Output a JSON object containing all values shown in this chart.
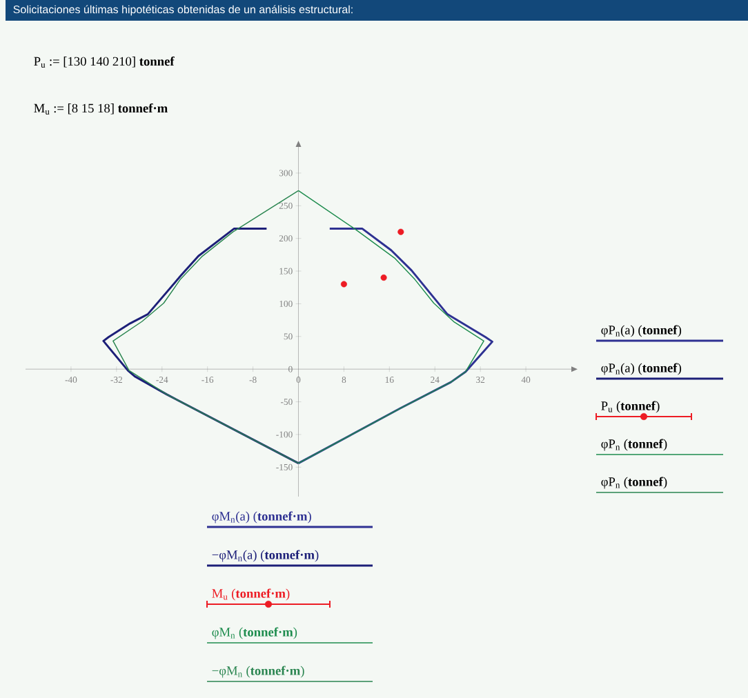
{
  "chart_data": {
    "type": "line",
    "title": "Solicitaciones últimas hipotéticas obtenidas de un análisis estructural:",
    "annotations": [
      "P$_{u}$ := [130  140  210] **tonnef**",
      "M$_{u}$ := [8  15  18] **tonnef·m**",
      "φP$_{n}$(a)  (**tonnef**)",
      "φP$_{n}$(a)  (**tonnef**)",
      "P$_{u}$  (**tonnef**)",
      "φP$_{n}$  (**tonnef**)",
      "φP$_{n}$  (**tonnef**)"
    ],
    "xlim": [
      -48,
      48
    ],
    "ylim": [
      -195,
      340
    ],
    "xticks": [
      -40,
      -32,
      -24,
      -16,
      -8,
      0,
      8,
      16,
      24,
      32,
      40
    ],
    "yticks": [
      -150,
      -100,
      -50,
      0,
      50,
      100,
      150,
      200,
      250,
      300
    ],
    "series": [
      {
        "name": "φM$_{n}$(a)  (**tonnef·m**)",
        "color": "#2e3192",
        "x": [
          5.5,
          11.2,
          16.3,
          19.9,
          26.2,
          32.9,
          34.1,
          29.4,
          26.8,
          17.9,
          0
        ],
        "values": [
          215,
          215,
          182,
          151,
          84,
          49,
          42,
          -4,
          -20,
          -60,
          -144
        ]
      },
      {
        "name": "−φM$_{n}$(a)  (**tonnef·m**)",
        "color": "#1c1f78",
        "x": [
          -5.6,
          -11.3,
          -17.6,
          -20.6,
          -26.5,
          -29.6,
          -33.4,
          -34.3,
          -30,
          -28.8,
          -23.1,
          0
        ],
        "values": [
          215,
          215,
          173,
          144,
          84,
          70,
          49,
          43,
          -2,
          -11,
          -39,
          -144
        ]
      },
      {
        "name": "M$_{u}$  (**tonnef·m**)",
        "type": "scatter",
        "marker": "circle",
        "color": "#ed1c24",
        "x": [
          8,
          15,
          18
        ],
        "values": [
          130,
          140,
          210
        ]
      },
      {
        "name": "φM$_{n}$  (**tonnef·m**)",
        "color": "#1e8c4e",
        "x": [
          0,
          10,
          16.9,
          20.5,
          23.8,
          27.4,
          32.6,
          29.4,
          26.8,
          17.9,
          0
        ],
        "values": [
          273,
          214,
          170,
          137,
          101,
          72,
          43,
          -4,
          -20,
          -60,
          -144
        ]
      },
      {
        "name": "−φM$_{n}$  (**tonnef·m**)",
        "color": "#2a8550",
        "x": [
          0,
          -11.5,
          -17,
          -20.8,
          -23.7,
          -27.5,
          -32.6,
          -29.8,
          -23.1,
          0
        ],
        "values": [
          273,
          210,
          172,
          137,
          101,
          73,
          43,
          -2,
          -39,
          -144
        ]
      }
    ]
  }
}
